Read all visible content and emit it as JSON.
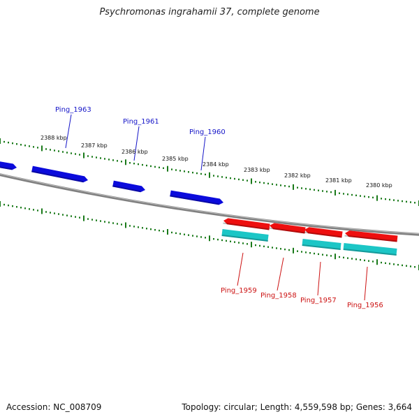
{
  "title": "Psychromonas ingrahamii 37, complete genome",
  "footer": {
    "accession": "Accession: NC_008709",
    "summary": "Topology: circular; Length: 4,559,598 bp; Genes: 3,664"
  },
  "colors": {
    "forward_gene": "#0b0bdc",
    "reverse_gene": "#ee0f0f",
    "cds": "#1cc6c6",
    "tick": "#1a7a1a",
    "backbone": "#808080",
    "blue_label": "#1515c8",
    "red_label": "#cc1111"
  },
  "kbp_labels": [
    "2388 kbp",
    "2387 kbp",
    "2386 kbp",
    "2385 kbp",
    "2384 kbp",
    "2383 kbp",
    "2382 kbp",
    "2381 kbp",
    "2380 kbp"
  ],
  "forward_genes": [
    "Ping_1963",
    "Ping_1961",
    "Ping_1960"
  ],
  "reverse_genes": [
    "Ping_1959",
    "Ping_1958",
    "Ping_1957",
    "Ping_1956"
  ]
}
